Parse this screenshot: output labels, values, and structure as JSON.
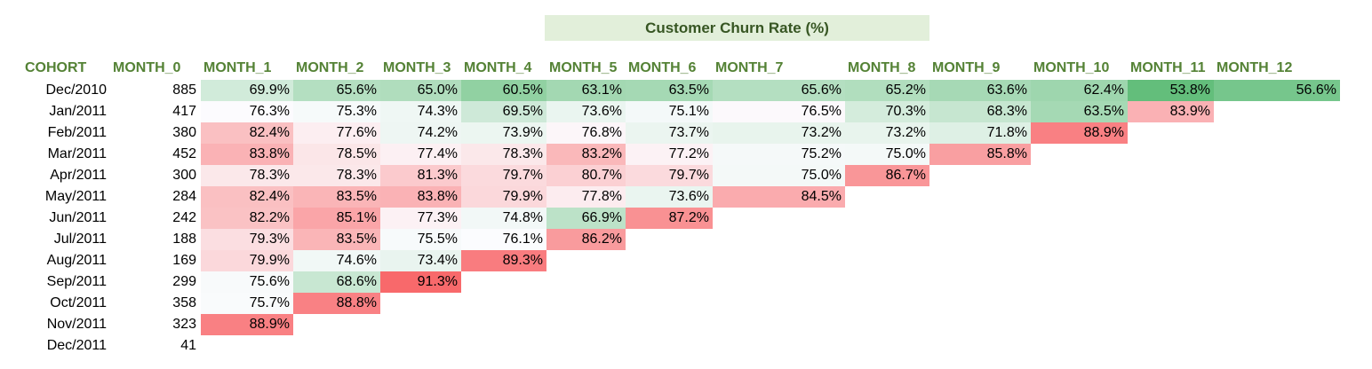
{
  "chart_data": {
    "type": "heatmap",
    "title": "Customer Churn Rate (%)",
    "row_header": "COHORT",
    "size_header": "MONTH_0",
    "columns": [
      "MONTH_1",
      "MONTH_2",
      "MONTH_3",
      "MONTH_4",
      "MONTH_5",
      "MONTH_6",
      "MONTH_7",
      "MONTH_8",
      "MONTH_9",
      "MONTH_10",
      "MONTH_11",
      "MONTH_12"
    ],
    "rows": [
      {
        "cohort": "Dec/2010",
        "size": "885",
        "values": [
          "69.9%",
          "65.6%",
          "65.0%",
          "60.5%",
          "63.1%",
          "63.5%",
          "65.6%",
          "65.2%",
          "63.6%",
          "62.4%",
          "53.8%",
          "56.6%"
        ]
      },
      {
        "cohort": "Jan/2011",
        "size": "417",
        "values": [
          "76.3%",
          "75.3%",
          "74.3%",
          "69.5%",
          "73.6%",
          "75.1%",
          "76.5%",
          "70.3%",
          "68.3%",
          "63.5%",
          "83.9%"
        ]
      },
      {
        "cohort": "Feb/2011",
        "size": "380",
        "values": [
          "82.4%",
          "77.6%",
          "74.2%",
          "73.9%",
          "76.8%",
          "73.7%",
          "73.2%",
          "73.2%",
          "71.8%",
          "88.9%"
        ]
      },
      {
        "cohort": "Mar/2011",
        "size": "452",
        "values": [
          "83.8%",
          "78.5%",
          "77.4%",
          "78.3%",
          "83.2%",
          "77.2%",
          "75.2%",
          "75.0%",
          "85.8%"
        ]
      },
      {
        "cohort": "Apr/2011",
        "size": "300",
        "values": [
          "78.3%",
          "78.3%",
          "81.3%",
          "79.7%",
          "80.7%",
          "79.7%",
          "75.0%",
          "86.7%"
        ]
      },
      {
        "cohort": "May/2011",
        "size": "284",
        "values": [
          "82.4%",
          "83.5%",
          "83.8%",
          "79.9%",
          "77.8%",
          "73.6%",
          "84.5%"
        ]
      },
      {
        "cohort": "Jun/2011",
        "size": "242",
        "values": [
          "82.2%",
          "85.1%",
          "77.3%",
          "74.8%",
          "66.9%",
          "87.2%"
        ]
      },
      {
        "cohort": "Jul/2011",
        "size": "188",
        "values": [
          "79.3%",
          "83.5%",
          "75.5%",
          "76.1%",
          "86.2%"
        ]
      },
      {
        "cohort": "Aug/2011",
        "size": "169",
        "values": [
          "79.9%",
          "74.6%",
          "73.4%",
          "89.3%"
        ]
      },
      {
        "cohort": "Sep/2011",
        "size": "299",
        "values": [
          "75.6%",
          "68.6%",
          "91.3%"
        ]
      },
      {
        "cohort": "Oct/2011",
        "size": "358",
        "values": [
          "75.7%",
          "88.8%"
        ]
      },
      {
        "cohort": "Nov/2011",
        "size": "323",
        "values": [
          "88.9%"
        ]
      },
      {
        "cohort": "Dec/2011",
        "size": "41",
        "values": []
      }
    ],
    "color_scale": {
      "low": "#63be7b",
      "mid": "#fcfcff",
      "high": "#f8696b"
    }
  }
}
